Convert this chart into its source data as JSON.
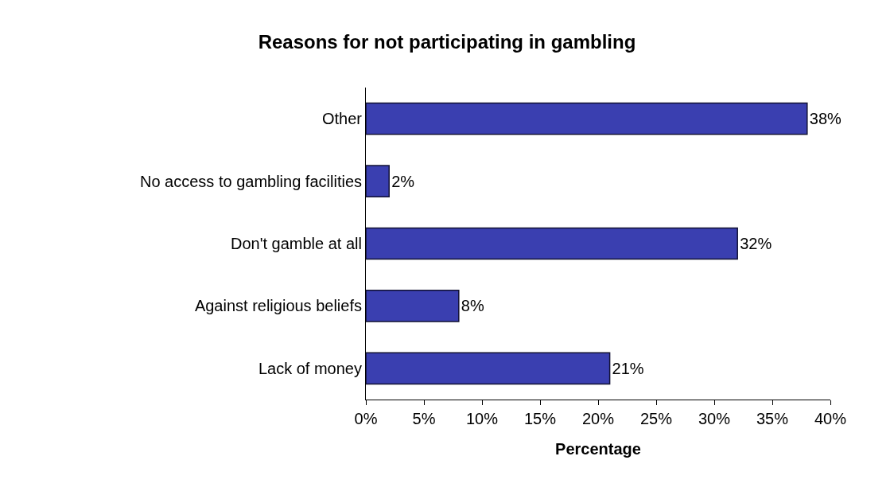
{
  "chart_data": {
    "type": "bar",
    "orientation": "horizontal",
    "title": "Reasons for not participating in gambling",
    "xlabel": "Percentage",
    "categories": [
      "Other",
      "No access to gambling facilities",
      "Don't gamble at all",
      "Against religious beliefs",
      "Lack of money"
    ],
    "values": [
      38,
      2,
      32,
      8,
      21
    ],
    "value_labels": [
      "38%",
      "2%",
      "32%",
      "8%",
      "21%"
    ],
    "color": "#3a3fb0",
    "xlim": [
      0,
      40
    ],
    "xticks": [
      {
        "value": 0,
        "label": "0%"
      },
      {
        "value": 5,
        "label": "5%"
      },
      {
        "value": 10,
        "label": "10%"
      },
      {
        "value": 15,
        "label": "15%"
      },
      {
        "value": 20,
        "label": "20%"
      },
      {
        "value": 25,
        "label": "25%"
      },
      {
        "value": 30,
        "label": "30%"
      },
      {
        "value": 35,
        "label": "35%"
      },
      {
        "value": 40,
        "label": "40%"
      }
    ],
    "grid": false
  }
}
